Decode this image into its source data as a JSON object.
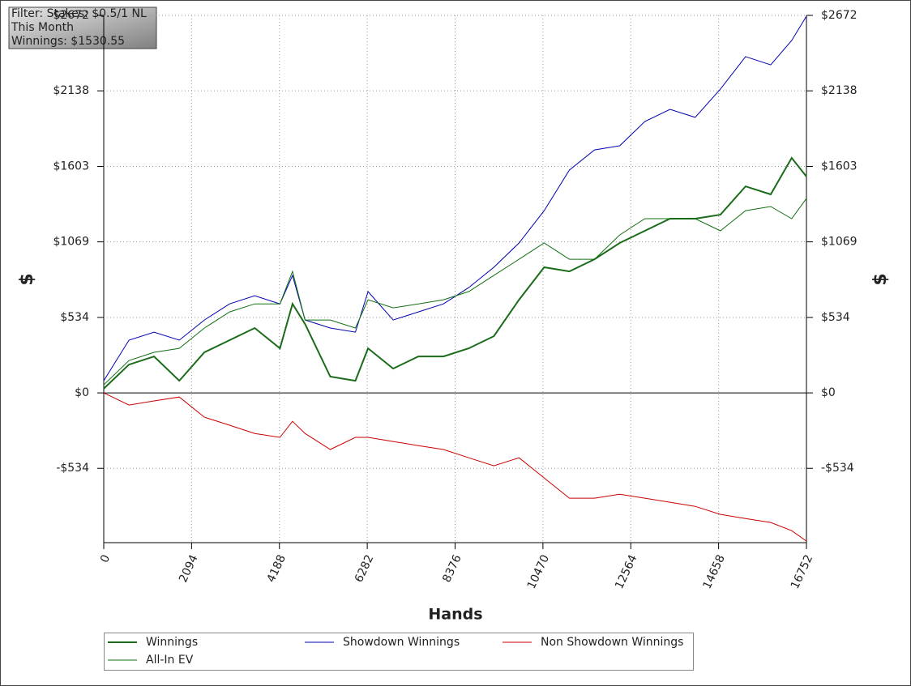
{
  "chart_data": {
    "type": "line",
    "annotations": [
      "Filter: Stakes: $0.5/1 NL",
      "This Month",
      "Winnings: $1530.55"
    ],
    "xlabel": "Hands",
    "ylabel": "$",
    "x": [
      0,
      600,
      1200,
      1800,
      2400,
      3000,
      3600,
      4200,
      4500,
      4800,
      5400,
      6000,
      6300,
      6900,
      7500,
      8100,
      8700,
      9300,
      9900,
      10500,
      11100,
      11700,
      12300,
      12900,
      13500,
      14100,
      14700,
      15300,
      15900,
      16400,
      16752
    ],
    "series": [
      {
        "name": "Winnings",
        "color": "#1a6b1a",
        "width": 2,
        "values": [
          30,
          200,
          258,
          86,
          287,
          373,
          459,
          315,
          630,
          487,
          115,
          86,
          315,
          172,
          258,
          258,
          315,
          401,
          659,
          889,
          860,
          946,
          1061,
          1147,
          1233,
          1233,
          1261,
          1462,
          1405,
          1663,
          1531
        ]
      },
      {
        "name": "Showdown Winnings",
        "color": "#0000b0",
        "width": 1,
        "values": [
          86,
          373,
          430,
          373,
          516,
          630,
          688,
          630,
          831,
          516,
          459,
          430,
          717,
          516,
          573,
          630,
          745,
          889,
          1061,
          1290,
          1577,
          1720,
          1749,
          1921,
          2007,
          1950,
          2150,
          2380,
          2322,
          2494,
          2666
        ]
      },
      {
        "name": "Non Showdown Winnings",
        "color": "#cc0000",
        "width": 1,
        "values": [
          0,
          -86,
          -57,
          -29,
          -172,
          -229,
          -287,
          -315,
          -201,
          -287,
          -401,
          -315,
          -315,
          -344,
          -373,
          -401,
          -459,
          -516,
          -459,
          -602,
          -745,
          -745,
          -717,
          -745,
          -774,
          -803,
          -860,
          -889,
          -917,
          -975,
          -1049
        ]
      },
      {
        "name": "All-In EV",
        "color": "#107010",
        "width": 1,
        "values": [
          57,
          229,
          287,
          315,
          459,
          573,
          630,
          630,
          860,
          516,
          516,
          459,
          659,
          602,
          630,
          659,
          717,
          831,
          946,
          1061,
          946,
          946,
          1118,
          1233,
          1233,
          1233,
          1147,
          1290,
          1319,
          1233,
          1376
        ]
      }
    ],
    "xlim": [
      0,
      16752
    ],
    "xticks": [
      0,
      2094,
      4188,
      6282,
      8376,
      10470,
      12564,
      14658,
      16752
    ],
    "ylim": [
      -1060,
      2672
    ],
    "yticks": [
      {
        "value": -534,
        "label": "-$534"
      },
      {
        "value": 0,
        "label": "$0"
      },
      {
        "value": 534,
        "label": "$534"
      },
      {
        "value": 1069,
        "label": "$1069"
      },
      {
        "value": 1603,
        "label": "$1603"
      },
      {
        "value": 2138,
        "label": "$2138"
      },
      {
        "value": 2672,
        "label": "$2672"
      }
    ],
    "grid": true
  }
}
